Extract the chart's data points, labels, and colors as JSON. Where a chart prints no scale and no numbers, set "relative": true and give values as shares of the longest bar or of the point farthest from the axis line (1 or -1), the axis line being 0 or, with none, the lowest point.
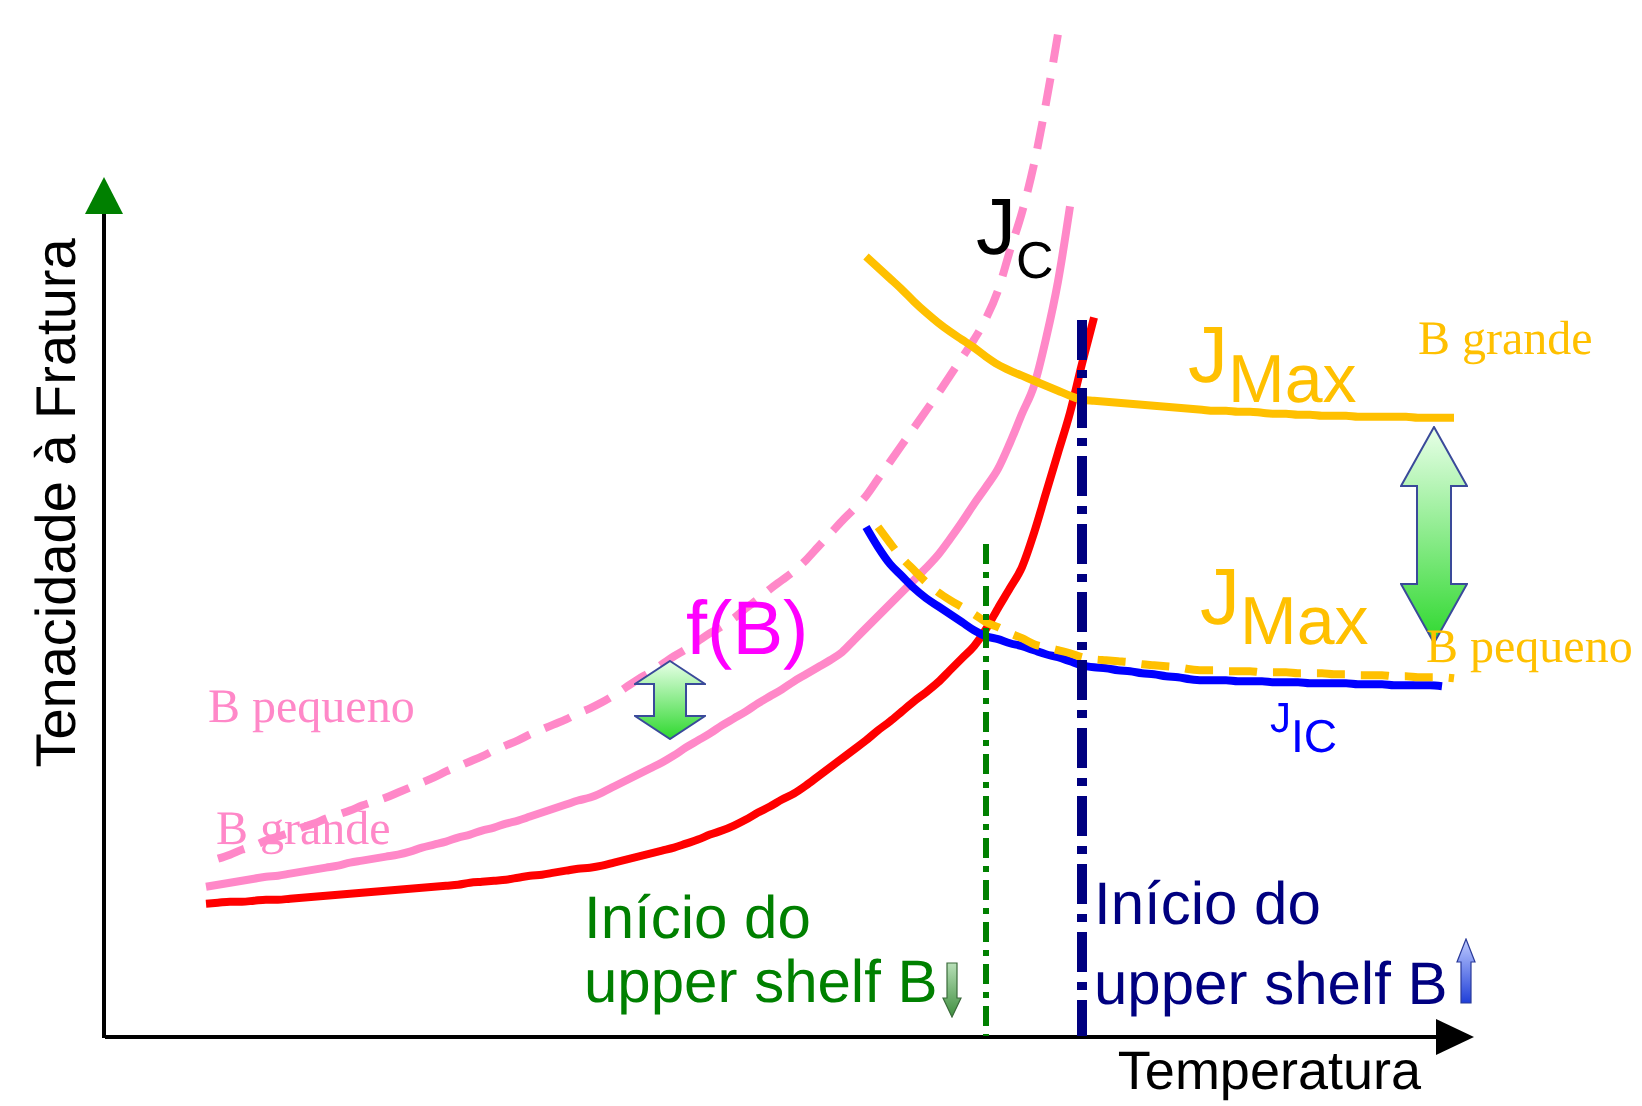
{
  "chart_data": {
    "type": "line",
    "relative": true,
    "xlabel": "Temperatura",
    "ylabel": "Tenacidade à Fratura",
    "categories": [
      null,
      null,
      null,
      null,
      null,
      null,
      null,
      null,
      null,
      null,
      null,
      null,
      null,
      null,
      null,
      null,
      null,
      null,
      null,
      null,
      null,
      null,
      null,
      null,
      null,
      null,
      null,
      null,
      null,
      null,
      null,
      null,
      null,
      null,
      null,
      null,
      null,
      null,
      null,
      null,
      null,
      null,
      null,
      null,
      null,
      null,
      null,
      null,
      null,
      null,
      null,
      null,
      null,
      null,
      null,
      null,
      null,
      null,
      null,
      null,
      null,
      null,
      null,
      null,
      null,
      null,
      null,
      null,
      null,
      null,
      null,
      null,
      null,
      null,
      null,
      null,
      null,
      null,
      null,
      null,
      null,
      null,
      null,
      null,
      null,
      null,
      null,
      null,
      null,
      null,
      null,
      null,
      null,
      null,
      null,
      null,
      null,
      null,
      null,
      null,
      null,
      null,
      null,
      null,
      null,
      null,
      null,
      null,
      null,
      null,
      null,
      null,
      null
    ],
    "series": [
      {
        "name": "B pequeno",
        "color": "#ff88c8",
        "line_style": "dashed",
        "values": [
          null,
          null,
          null,
          null,
          null,
          null,
          null,
          null,
          null,
          0.177,
          0.181,
          0.186,
          0.19,
          0.195,
          0.199,
          0.203,
          0.208,
          0.212,
          0.217,
          0.221,
          0.225,
          0.23,
          0.234,
          0.238,
          0.243,
          0.248,
          0.253,
          0.258,
          0.264,
          0.269,
          0.274,
          0.279,
          0.285,
          0.29,
          0.295,
          0.301,
          0.306,
          0.311,
          0.316,
          0.322,
          0.327,
          0.333,
          0.34,
          0.348,
          0.356,
          0.363,
          0.371,
          0.379,
          0.386,
          0.394,
          0.402,
          0.409,
          0.417,
          0.427,
          0.436,
          0.446,
          0.455,
          0.464,
          0.475,
          0.488,
          0.501,
          0.514,
          0.526,
          0.539,
          0.556,
          0.573,
          0.59,
          0.607,
          0.624,
          0.641,
          0.659,
          0.677,
          0.695,
          0.716,
          0.744,
          0.784,
          0.822,
          0.87,
          0.931,
          1,
          null,
          null,
          null,
          null,
          null,
          null,
          null,
          null,
          null,
          null,
          null,
          null,
          null,
          null,
          null,
          null,
          null,
          null,
          null,
          null,
          null,
          null,
          null,
          null,
          null,
          null,
          null,
          null,
          null,
          null,
          null,
          null,
          null
        ]
      },
      {
        "name": "B grande",
        "color": "#ff88c8",
        "values": [
          null,
          null,
          null,
          null,
          null,
          null,
          null,
          null,
          0.149,
          0.151,
          0.153,
          0.155,
          0.157,
          0.159,
          0.16,
          0.162,
          0.164,
          0.166,
          0.168,
          0.17,
          0.173,
          0.175,
          0.177,
          0.179,
          0.181,
          0.184,
          0.188,
          0.191,
          0.194,
          0.198,
          0.201,
          0.205,
          0.208,
          0.212,
          0.215,
          0.219,
          0.223,
          0.227,
          0.231,
          0.235,
          0.238,
          0.243,
          0.249,
          0.255,
          0.261,
          0.267,
          0.273,
          0.28,
          0.288,
          0.295,
          0.302,
          0.31,
          0.317,
          0.324,
          0.332,
          0.339,
          0.346,
          0.354,
          0.361,
          0.368,
          0.375,
          0.383,
          0.395,
          0.407,
          0.419,
          0.431,
          0.443,
          0.455,
          0.467,
          0.48,
          0.496,
          0.513,
          0.531,
          0.548,
          0.566,
          0.592,
          0.621,
          0.649,
          0.696,
          0.753,
          0.828,
          null,
          null,
          null,
          null,
          null,
          null,
          null,
          null,
          null,
          null,
          null,
          null,
          null,
          null,
          null,
          null,
          null,
          null,
          null,
          null,
          null,
          null,
          null,
          null,
          null,
          null,
          null,
          null,
          null,
          null,
          null,
          null
        ]
      },
      {
        "color": "#ff0000",
        "values": [
          null,
          null,
          null,
          null,
          null,
          null,
          null,
          null,
          0.132,
          0.133,
          0.134,
          0.134,
          0.135,
          0.136,
          0.136,
          0.137,
          0.138,
          0.139,
          0.14,
          0.141,
          0.142,
          0.143,
          0.144,
          0.145,
          0.146,
          0.147,
          0.148,
          0.149,
          0.15,
          0.151,
          0.153,
          0.154,
          0.155,
          0.156,
          0.158,
          0.16,
          0.161,
          0.163,
          0.165,
          0.167,
          0.168,
          0.17,
          0.173,
          0.176,
          0.179,
          0.182,
          0.185,
          0.188,
          0.192,
          0.196,
          0.201,
          0.205,
          0.21,
          0.216,
          0.223,
          0.229,
          0.236,
          0.242,
          0.25,
          0.259,
          0.268,
          0.277,
          0.286,
          0.295,
          0.305,
          0.314,
          0.324,
          0.334,
          0.343,
          0.353,
          0.365,
          0.377,
          0.389,
          0.406,
          0.427,
          0.447,
          0.468,
          0.502,
          0.542,
          0.582,
          0.622,
          0.671,
          0.717,
          null,
          null,
          null,
          null,
          null,
          null,
          null,
          null,
          null,
          null,
          null,
          null,
          null,
          null,
          null,
          null,
          null,
          null,
          null,
          null,
          null,
          null,
          null,
          null,
          null,
          null,
          null,
          null,
          null,
          null
        ]
      },
      {
        "name": "B grande",
        "color": "#ffc000",
        "values": [
          null,
          null,
          null,
          null,
          null,
          null,
          null,
          null,
          null,
          null,
          null,
          null,
          null,
          null,
          null,
          null,
          null,
          null,
          null,
          null,
          null,
          null,
          null,
          null,
          null,
          null,
          null,
          null,
          null,
          null,
          null,
          null,
          null,
          null,
          null,
          null,
          null,
          null,
          null,
          null,
          null,
          null,
          null,
          null,
          null,
          null,
          null,
          null,
          null,
          null,
          null,
          null,
          null,
          null,
          null,
          null,
          null,
          null,
          null,
          null,
          null,
          null,
          null,
          0.778,
          0.767,
          0.756,
          0.745,
          0.733,
          0.722,
          0.712,
          0.703,
          0.695,
          0.687,
          0.678,
          0.67,
          0.664,
          0.659,
          0.654,
          0.649,
          0.644,
          0.639,
          0.635,
          0.634,
          0.633,
          0.632,
          0.631,
          0.63,
          0.629,
          0.628,
          0.627,
          0.626,
          0.625,
          0.624,
          0.624,
          0.623,
          0.623,
          0.622,
          0.621,
          0.621,
          0.62,
          0.62,
          0.619,
          0.619,
          0.619,
          0.618,
          0.618,
          0.618,
          0.618,
          0.618,
          0.617,
          0.617,
          0.617,
          0.617
        ]
      },
      {
        "name": "J$_{IC}$",
        "color": "#0000ff",
        "values": [
          null,
          null,
          null,
          null,
          null,
          null,
          null,
          null,
          null,
          null,
          null,
          null,
          null,
          null,
          null,
          null,
          null,
          null,
          null,
          null,
          null,
          null,
          null,
          null,
          null,
          null,
          null,
          null,
          null,
          null,
          null,
          null,
          null,
          null,
          null,
          null,
          null,
          null,
          null,
          null,
          null,
          null,
          null,
          null,
          null,
          null,
          null,
          null,
          null,
          null,
          null,
          null,
          null,
          null,
          null,
          null,
          null,
          null,
          null,
          null,
          null,
          null,
          null,
          0.508,
          0.488,
          0.471,
          0.459,
          0.447,
          0.437,
          0.429,
          0.421,
          0.413,
          0.405,
          0.399,
          0.396,
          0.392,
          0.389,
          0.385,
          0.381,
          0.378,
          0.374,
          0.37,
          0.368,
          0.367,
          0.365,
          0.364,
          0.362,
          0.361,
          0.359,
          0.358,
          0.356,
          0.355,
          0.355,
          0.355,
          0.354,
          0.354,
          0.354,
          0.353,
          0.353,
          0.353,
          0.352,
          0.352,
          0.352,
          0.352,
          0.351,
          0.351,
          0.351,
          0.35,
          0.35,
          0.35,
          0.35,
          0.349,
          null
        ]
      },
      {
        "name": "B pequeno",
        "color": "#ffc000",
        "line_style": "dashed",
        "values": [
          null,
          null,
          null,
          null,
          null,
          null,
          null,
          null,
          null,
          null,
          null,
          null,
          null,
          null,
          null,
          null,
          null,
          null,
          null,
          null,
          null,
          null,
          null,
          null,
          null,
          null,
          null,
          null,
          null,
          null,
          null,
          null,
          null,
          null,
          null,
          null,
          null,
          null,
          null,
          null,
          null,
          null,
          null,
          null,
          null,
          null,
          null,
          null,
          null,
          null,
          null,
          null,
          null,
          null,
          null,
          null,
          null,
          null,
          null,
          null,
          null,
          null,
          null,
          null,
          0.508,
          0.492,
          0.477,
          0.465,
          0.453,
          0.443,
          0.435,
          0.428,
          0.421,
          0.413,
          0.408,
          0.402,
          0.397,
          0.391,
          0.388,
          0.385,
          0.382,
          0.378,
          0.376,
          0.375,
          0.374,
          0.373,
          0.371,
          0.37,
          0.369,
          0.368,
          0.366,
          0.365,
          0.365,
          0.364,
          0.364,
          0.364,
          0.363,
          0.363,
          0.363,
          0.362,
          0.362,
          0.362,
          0.361,
          0.361,
          0.36,
          0.36,
          0.36,
          0.359,
          0.359,
          0.358,
          0.358,
          0.358,
          0.357
        ]
      }
    ],
    "annotations": [
      "J$_{C}$",
      "J$_{Max}$",
      "J$_{Max}$",
      "f(B)",
      "Início do upper shelf B",
      "Início do upper shelf B"
    ]
  }
}
